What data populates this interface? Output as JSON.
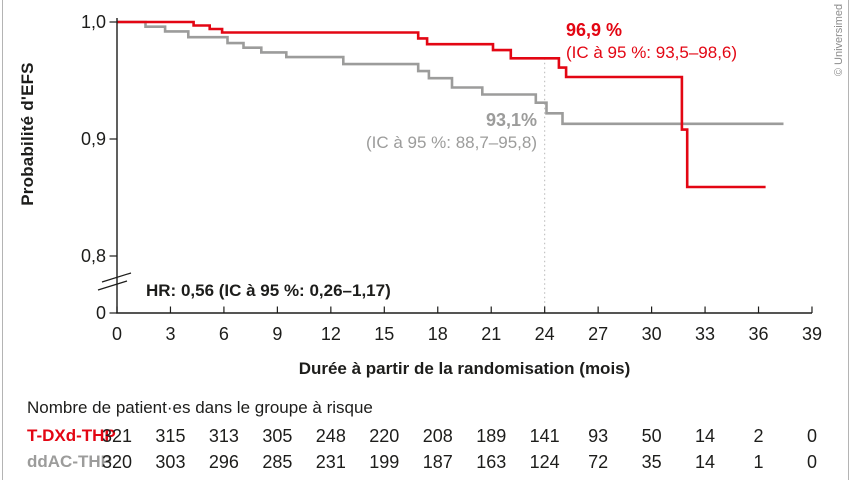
{
  "copyright": "© Universimed",
  "chart": {
    "y_axis_title": "Probabilité d'EFS",
    "x_axis_title": "Durée à partir de la randomisation (mois)",
    "hr_annotation": "HR: 0,56 (IC à 95 %: 0,26–1,17)"
  },
  "chart_data": {
    "type": "line",
    "subtype": "kaplan-meier-step",
    "title": "",
    "xlabel": "Durée à partir de la randomisation (mois)",
    "ylabel": "Probabilité d'EFS",
    "xlim": [
      0,
      39
    ],
    "ylim_shown": [
      0.8,
      1.0
    ],
    "axis_break": true,
    "grid": false,
    "x_ticks": [
      0,
      3,
      6,
      9,
      12,
      15,
      18,
      21,
      24,
      27,
      30,
      33,
      36,
      39
    ],
    "y_ticks": [
      {
        "label": "1,0",
        "value": 1.0
      },
      {
        "label": "0,9",
        "value": 0.9
      },
      {
        "label": "0,8",
        "value": 0.8
      },
      {
        "label": "0",
        "value": "origin"
      }
    ],
    "reference_line_month": 24,
    "hr_annotation": "HR: 0,56 (IC à 95 %: 0,26–1,17)",
    "series": [
      {
        "name": "T-DXd-THP",
        "color": "#e30613",
        "landmark_month": 24,
        "landmark_label": "96,9 %",
        "landmark_ci": "(IC à 95 %: 93,5–98,6)",
        "end_month": 36.4,
        "steps": [
          [
            0,
            1.0
          ],
          [
            4.3,
            0.997
          ],
          [
            5.2,
            0.994
          ],
          [
            5.9,
            0.991
          ],
          [
            16.9,
            0.986
          ],
          [
            17.4,
            0.981
          ],
          [
            21.1,
            0.976
          ],
          [
            22.1,
            0.969
          ],
          [
            24.8,
            0.961
          ],
          [
            25.2,
            0.953
          ],
          [
            31.7,
            0.908
          ],
          [
            32.0,
            0.859
          ]
        ]
      },
      {
        "name": "ddAC-THP",
        "color": "#9c9c9b",
        "landmark_month": 24,
        "landmark_label": "93,1%",
        "landmark_ci": "(IC à 95 %: 88,7–95,8)",
        "end_month": 37.4,
        "steps": [
          [
            0,
            1.0
          ],
          [
            1.6,
            0.996
          ],
          [
            2.7,
            0.992
          ],
          [
            4.0,
            0.987
          ],
          [
            6.2,
            0.982
          ],
          [
            7.1,
            0.978
          ],
          [
            8.1,
            0.974
          ],
          [
            9.5,
            0.97
          ],
          [
            12.7,
            0.964
          ],
          [
            16.9,
            0.958
          ],
          [
            17.5,
            0.952
          ],
          [
            18.8,
            0.944
          ],
          [
            20.5,
            0.938
          ],
          [
            23.5,
            0.931
          ],
          [
            24.1,
            0.922
          ],
          [
            25.0,
            0.913
          ]
        ]
      }
    ]
  },
  "risk_table": {
    "title": "Nombre de patient·es dans le groupe à risque",
    "months": [
      0,
      3,
      6,
      9,
      12,
      15,
      18,
      21,
      24,
      27,
      30,
      33,
      36,
      39
    ],
    "rows": [
      {
        "label": "T-DXd-THP",
        "color": "#e30613",
        "counts": [
          "321",
          "315",
          "313",
          "305",
          "248",
          "220",
          "208",
          "189",
          "141",
          "93",
          "50",
          "14",
          "2",
          "0"
        ]
      },
      {
        "label": "ddAC-THP",
        "color": "#9c9c9b",
        "counts": [
          "320",
          "303",
          "296",
          "285",
          "231",
          "199",
          "187",
          "163",
          "124",
          "72",
          "35",
          "14",
          "1",
          "0"
        ]
      }
    ]
  }
}
